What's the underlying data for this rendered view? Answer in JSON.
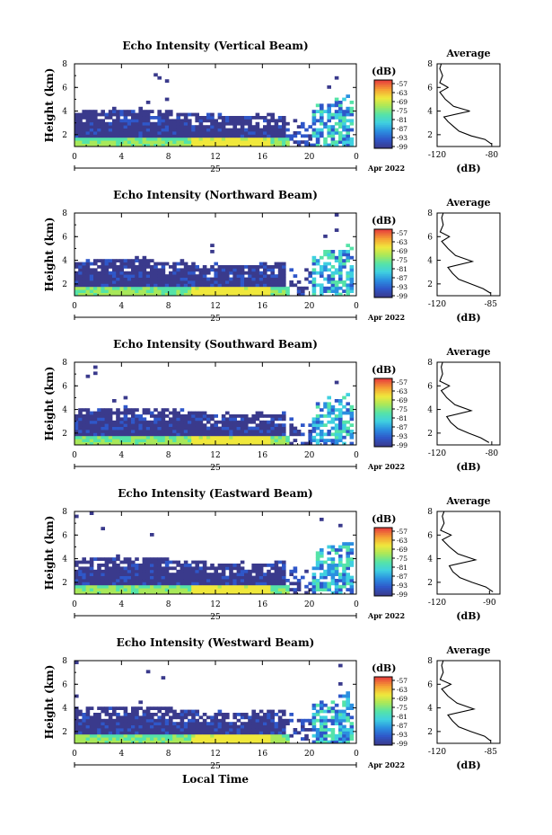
{
  "colors": {
    "background": "#ffffff",
    "colormap": [
      "#3a3a8c",
      "#2f57c9",
      "#2b8fe0",
      "#3fd0e0",
      "#55e3a8",
      "#a8e85a",
      "#f0e83c",
      "#f5a034",
      "#e8463c"
    ]
  },
  "xlabel": "Local Time",
  "chart_data": [
    {
      "type": "heatmap",
      "title": "Echo Intensity (Vertical Beam)",
      "ylabel": "Height (km)",
      "ylim": [
        1,
        8
      ],
      "yticks": [
        "2",
        "4",
        "6",
        "8"
      ],
      "xlim": [
        0,
        24
      ],
      "xticks": [
        "0",
        "4",
        "8",
        "12",
        "16",
        "20",
        "0"
      ],
      "day_label": "25",
      "month_label": "Apr 2022",
      "colorbar": {
        "unit": "(dB)",
        "ticks": [
          "-57",
          "-63",
          "-69",
          "-75",
          "-81",
          "-87",
          "-93",
          "-99"
        ]
      },
      "average_profile": {
        "title": "Average",
        "xlabel": "(dB)",
        "xticks": [
          "-120",
          "-80"
        ],
        "ylim": [
          1,
          8
        ],
        "yticks": [
          "2",
          "4",
          "6",
          "8"
        ],
        "profile": [
          [
            -80,
            1.2
          ],
          [
            -85,
            1.6
          ],
          [
            -95,
            1.9
          ],
          [
            -104,
            2.3
          ],
          [
            -108,
            2.7
          ],
          [
            -112,
            3.1
          ],
          [
            -115,
            3.5
          ],
          [
            -96,
            4.0
          ],
          [
            -108,
            4.4
          ],
          [
            -114,
            5.0
          ],
          [
            -118,
            5.6
          ],
          [
            -112,
            6.0
          ],
          [
            -118,
            6.4
          ],
          [
            -116,
            7.0
          ],
          [
            -118,
            7.6
          ],
          [
            -117,
            8.0
          ]
        ]
      }
    },
    {
      "type": "heatmap",
      "title": "Echo Intensity (Northward Beam)",
      "ylabel": "Height (km)",
      "ylim": [
        1,
        8
      ],
      "yticks": [
        "2",
        "4",
        "6",
        "8"
      ],
      "xlim": [
        0,
        24
      ],
      "xticks": [
        "0",
        "4",
        "8",
        "12",
        "16",
        "20",
        "0"
      ],
      "day_label": "25",
      "month_label": "Apr 2022",
      "colorbar": {
        "unit": "(dB)",
        "ticks": [
          "-57",
          "-63",
          "-69",
          "-75",
          "-81",
          "-87",
          "-93",
          "-99"
        ]
      },
      "average_profile": {
        "title": "Average",
        "xlabel": "(dB)",
        "xticks": [
          "-120",
          "-85"
        ],
        "ylim": [
          1,
          8
        ],
        "yticks": [
          "2",
          "4",
          "6",
          "8"
        ],
        "profile": [
          [
            -85,
            1.2
          ],
          [
            -90,
            1.6
          ],
          [
            -98,
            2.0
          ],
          [
            -106,
            2.4
          ],
          [
            -110,
            2.9
          ],
          [
            -113,
            3.4
          ],
          [
            -97,
            3.9
          ],
          [
            -108,
            4.4
          ],
          [
            -113,
            5.0
          ],
          [
            -117,
            5.6
          ],
          [
            -112,
            6.0
          ],
          [
            -118,
            6.4
          ],
          [
            -116,
            7.0
          ],
          [
            -117,
            7.6
          ],
          [
            -116,
            8.0
          ]
        ]
      }
    },
    {
      "type": "heatmap",
      "title": "Echo Intensity (Southward Beam)",
      "ylabel": "Height (km)",
      "ylim": [
        1,
        8
      ],
      "yticks": [
        "2",
        "4",
        "6",
        "8"
      ],
      "xlim": [
        0,
        24
      ],
      "xticks": [
        "0",
        "4",
        "8",
        "12",
        "16",
        "20",
        "0"
      ],
      "day_label": "25",
      "month_label": "Apr 2022",
      "colorbar": {
        "unit": "(dB)",
        "ticks": [
          "-57",
          "-63",
          "-69",
          "-75",
          "-81",
          "-87",
          "-93",
          "-99"
        ]
      },
      "average_profile": {
        "title": "Average",
        "xlabel": "(dB)",
        "xticks": [
          "-120",
          "-80"
        ],
        "ylim": [
          1,
          8
        ],
        "yticks": [
          "2",
          "4",
          "6",
          "8"
        ],
        "profile": [
          [
            -82,
            1.2
          ],
          [
            -88,
            1.6
          ],
          [
            -97,
            2.0
          ],
          [
            -105,
            2.4
          ],
          [
            -110,
            2.9
          ],
          [
            -113,
            3.4
          ],
          [
            -95,
            3.9
          ],
          [
            -107,
            4.4
          ],
          [
            -113,
            5.0
          ],
          [
            -117,
            5.6
          ],
          [
            -111,
            6.0
          ],
          [
            -118,
            6.4
          ],
          [
            -116,
            7.0
          ],
          [
            -117,
            7.6
          ],
          [
            -116,
            8.0
          ]
        ]
      }
    },
    {
      "type": "heatmap",
      "title": "Echo Intensity (Eastward Beam)",
      "ylabel": "Height (km)",
      "ylim": [
        1,
        8
      ],
      "yticks": [
        "2",
        "4",
        "6",
        "8"
      ],
      "xlim": [
        0,
        24
      ],
      "xticks": [
        "0",
        "4",
        "8",
        "12",
        "16",
        "20",
        "0"
      ],
      "day_label": "25",
      "month_label": "Apr 2022",
      "colorbar": {
        "unit": "(dB)",
        "ticks": [
          "-57",
          "-63",
          "-69",
          "-75",
          "-81",
          "-87",
          "-93",
          "-99"
        ]
      },
      "average_profile": {
        "title": "Average",
        "xlabel": "(dB)",
        "xticks": [
          "-120",
          "-90"
        ],
        "ylim": [
          1,
          8
        ],
        "yticks": [
          "2",
          "4",
          "6",
          "8"
        ],
        "profile": [
          [
            -88,
            1.2
          ],
          [
            -92,
            1.6
          ],
          [
            -100,
            2.0
          ],
          [
            -107,
            2.4
          ],
          [
            -111,
            2.9
          ],
          [
            -113,
            3.4
          ],
          [
            -98,
            3.9
          ],
          [
            -108,
            4.4
          ],
          [
            -113,
            5.0
          ],
          [
            -117,
            5.6
          ],
          [
            -112,
            6.0
          ],
          [
            -118,
            6.4
          ],
          [
            -116,
            7.0
          ],
          [
            -117,
            7.6
          ],
          [
            -116,
            8.0
          ]
        ]
      }
    },
    {
      "type": "heatmap",
      "title": "Echo Intensity (Westward Beam)",
      "ylabel": "Height (km)",
      "ylim": [
        1,
        8
      ],
      "yticks": [
        "2",
        "4",
        "6",
        "8"
      ],
      "xlim": [
        0,
        24
      ],
      "xticks": [
        "0",
        "4",
        "8",
        "12",
        "16",
        "20",
        "0"
      ],
      "day_label": "25",
      "month_label": "Apr 2022",
      "colorbar": {
        "unit": "(dB)",
        "ticks": [
          "-57",
          "-63",
          "-69",
          "-75",
          "-81",
          "-87",
          "-93",
          "-99"
        ]
      },
      "average_profile": {
        "title": "Average",
        "xlabel": "(dB)",
        "xticks": [
          "-120",
          "-85"
        ],
        "ylim": [
          1,
          8
        ],
        "yticks": [
          "2",
          "4",
          "6",
          "8"
        ],
        "profile": [
          [
            -85,
            1.2
          ],
          [
            -89,
            1.6
          ],
          [
            -98,
            2.0
          ],
          [
            -106,
            2.4
          ],
          [
            -110,
            2.9
          ],
          [
            -113,
            3.4
          ],
          [
            -96,
            3.9
          ],
          [
            -107,
            4.4
          ],
          [
            -113,
            5.0
          ],
          [
            -117,
            5.6
          ],
          [
            -111,
            6.0
          ],
          [
            -118,
            6.4
          ],
          [
            -116,
            7.0
          ],
          [
            -117,
            7.6
          ],
          [
            -116,
            8.0
          ]
        ]
      }
    }
  ]
}
